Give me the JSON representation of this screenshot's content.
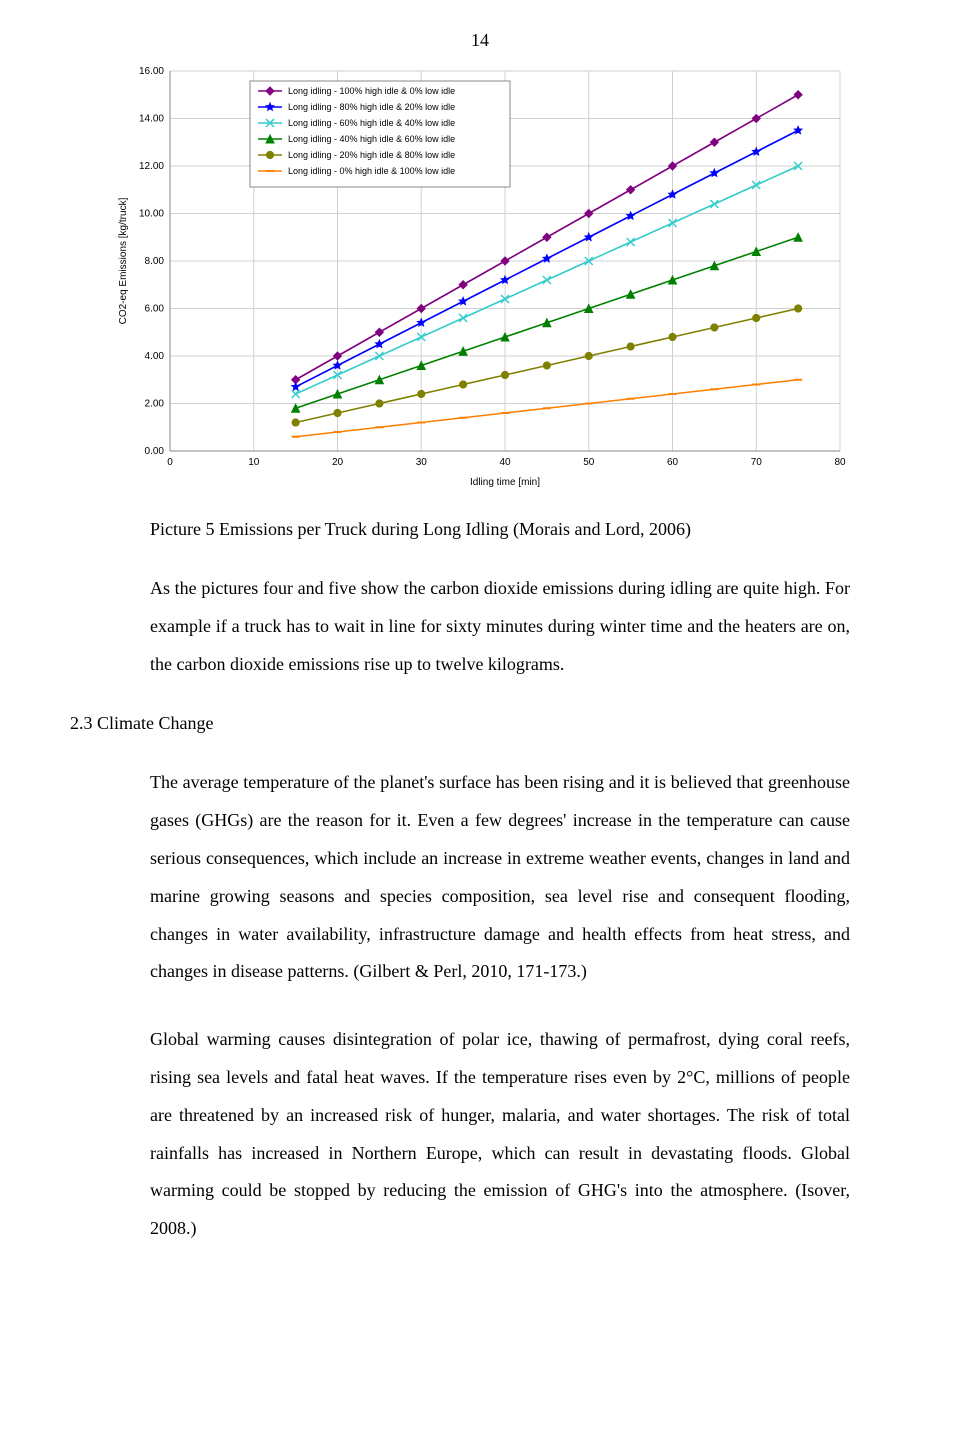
{
  "page_number": "14",
  "chart": {
    "type": "line",
    "xlabel": "Idling time [min]",
    "ylabel": "CO2-eq Emissions [kg/truck]",
    "label_fontsize": 10,
    "xlim": [
      0,
      80
    ],
    "ylim": [
      0,
      16
    ],
    "xtick_step": 10,
    "ytick_step": 2,
    "xticks": [
      "0",
      "10",
      "20",
      "30",
      "40",
      "50",
      "60",
      "70",
      "80"
    ],
    "yticks": [
      "0.00",
      "2.00",
      "4.00",
      "6.00",
      "8.00",
      "10.00",
      "12.00",
      "14.00",
      "16.00"
    ],
    "background_color": "#ffffff",
    "grid_color": "#d0d0d0",
    "line_width": 1.6,
    "marker_size": 4,
    "legend_border_color": "#8a8a8a",
    "legend": [
      {
        "label": "Long idling - 100% high idle & 0% low idle",
        "color": "#800080",
        "marker": "diamond"
      },
      {
        "label": "Long idling - 80% high idle & 20% low idle",
        "color": "#0000ff",
        "marker": "star"
      },
      {
        "label": "Long idling - 60% high idle & 40% low idle",
        "color": "#33cccc",
        "marker": "x"
      },
      {
        "label": "Long idling - 40% high idle & 60% low idle",
        "color": "#008000",
        "marker": "tri"
      },
      {
        "label": "Long idling - 20% high idle & 80% low idle",
        "color": "#808000",
        "marker": "circle"
      },
      {
        "label": "Long idling - 0% high idle & 100% low idle",
        "color": "#ff8000",
        "marker": "dash"
      }
    ],
    "series_x": [
      15,
      20,
      25,
      30,
      35,
      40,
      45,
      50,
      55,
      60,
      65,
      70,
      75
    ],
    "series": [
      {
        "color": "#800080",
        "marker": "diamond",
        "y": [
          3.0,
          4.0,
          5.0,
          6.0,
          7.0,
          8.0,
          9.0,
          10.0,
          11.0,
          12.0,
          13.0,
          14.0,
          15.0
        ]
      },
      {
        "color": "#0000ff",
        "marker": "star",
        "y": [
          2.7,
          3.6,
          4.5,
          5.4,
          6.3,
          7.2,
          8.1,
          9.0,
          9.9,
          10.8,
          11.7,
          12.6,
          13.5
        ]
      },
      {
        "color": "#33cccc",
        "marker": "x",
        "y": [
          2.4,
          3.2,
          4.0,
          4.8,
          5.6,
          6.4,
          7.2,
          8.0,
          8.8,
          9.6,
          10.4,
          11.2,
          12.0
        ]
      },
      {
        "color": "#008000",
        "marker": "tri",
        "y": [
          1.8,
          2.4,
          3.0,
          3.6,
          4.2,
          4.8,
          5.4,
          6.0,
          6.6,
          7.2,
          7.8,
          8.4,
          9.0
        ]
      },
      {
        "color": "#808000",
        "marker": "circle",
        "y": [
          1.2,
          1.6,
          2.0,
          2.4,
          2.8,
          3.2,
          3.6,
          4.0,
          4.4,
          4.8,
          5.2,
          5.6,
          6.0
        ]
      },
      {
        "color": "#ff8000",
        "marker": "dash",
        "y": [
          0.6,
          0.8,
          1.0,
          1.2,
          1.4,
          1.6,
          1.8,
          2.0,
          2.2,
          2.4,
          2.6,
          2.8,
          3.0
        ]
      }
    ]
  },
  "caption": "Picture 5 Emissions per Truck during Long Idling (Morais and Lord, 2006)",
  "para1": "As the pictures four and five show the carbon dioxide emissions during idling are quite high. For example if a truck has to  wait in line for sixty minutes during winter time and the heaters are on, the carbon dioxide emissions rise up to twelve kilograms.",
  "section_heading": "2.3  Climate Change",
  "para2": "The average temperature of the planet's surface has been rising and it is believed that greenhouse gases (GHGs) are the reason for it. Even a few degrees' increase in the temperature can cause serious consequences, which include an increase in extreme weather events, changes in land and marine growing seasons and species composition, sea level rise and consequent flooding, changes in water availability, infrastructure damage and health effects from heat stress, and changes in disease patterns. (Gilbert & Perl, 2010, 171-173.)",
  "para3": "Global warming causes disintegration of polar ice, thawing of permafrost, dying coral reefs, rising sea levels and fatal heat waves. If the temperature rises even by 2°C, millions of people are threatened by an increased risk of hunger, malaria, and water shortages. The risk of total rainfalls has increased in Northern Europe, which can result in devastating floods. Global warming could be stopped by reducing the emission of GHG's into the atmosphere. (Isover, 2008.)"
}
